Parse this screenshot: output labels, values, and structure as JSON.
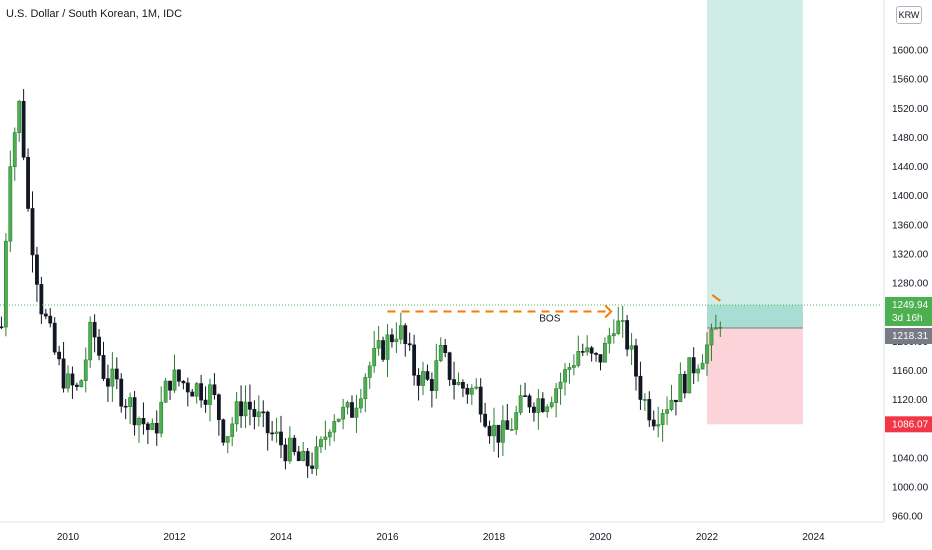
{
  "header": {
    "title": "U.S. Dollar / South Korean, 1M, IDC",
    "currency": "KRW"
  },
  "colors": {
    "up": "#26a69a",
    "up_fill": "#4caf50",
    "down": "#131722",
    "target_zone": "#cfece7",
    "target_zone_active": "#a8ddd3",
    "stop_zone": "#fad4d8",
    "bos": "#f57c00",
    "dotted_line": "#4caf50",
    "last_price_bg": "#4caf50",
    "entry_bg": "#787b86",
    "stop_bg": "#f23645"
  },
  "chart_data": {
    "type": "candlestick",
    "title": "U.S. Dollar / South Korean, 1M, IDC",
    "x_axis": {
      "ticks": [
        "2010",
        "2012",
        "2014",
        "2016",
        "2018",
        "2020",
        "2022",
        "2024"
      ]
    },
    "y_axis": {
      "range": [
        950,
        1650
      ],
      "ticks": [
        "960.00",
        "1000.00",
        "1040.00",
        "1080.00",
        "1120.00",
        "1160.00",
        "1200.00",
        "1240.00",
        "1280.00",
        "1320.00",
        "1360.00",
        "1400.00",
        "1440.00",
        "1480.00",
        "1520.00",
        "1560.00",
        "1600.00"
      ]
    },
    "annotations": {
      "bos_label": "BOS",
      "bos_level": 1241
    },
    "markers": {
      "last_price": "1249.94",
      "countdown": "3d 16h",
      "entry": "1218.31",
      "stop": "1086.07"
    },
    "position": {
      "entry": 1218.31,
      "target": 1650,
      "stop": 1086.07,
      "start_year": 2022.0,
      "end_year": 2023.8
    },
    "candles": []
  }
}
